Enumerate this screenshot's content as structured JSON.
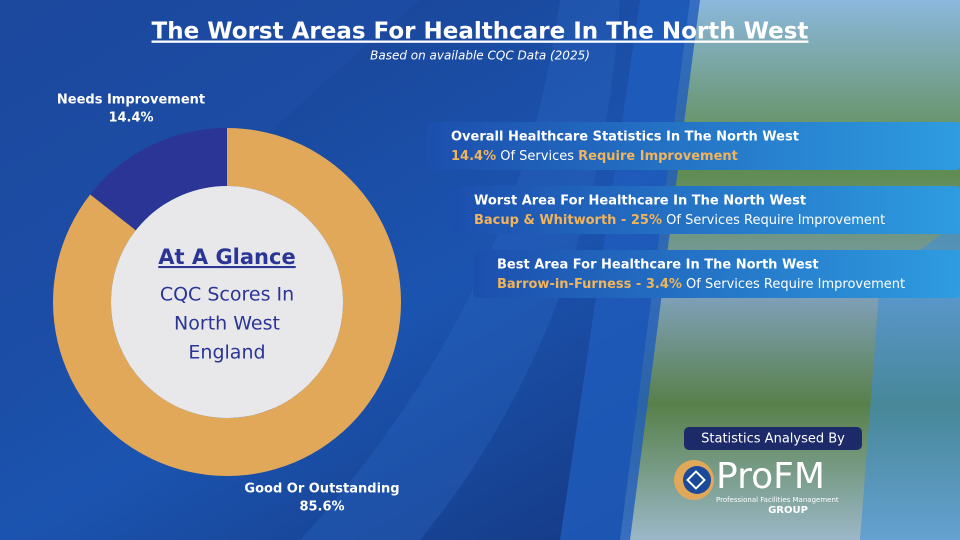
{
  "chart_data": {
    "type": "pie",
    "donut": true,
    "title": "The Worst Areas For Healthcare In The North West",
    "subtitle": "Based on available CQC Data (2025)",
    "categories": [
      "Needs Improvement",
      "Good Or Outstanding"
    ],
    "values": [
      14.4,
      85.6
    ],
    "value_labels": [
      "14.4%",
      "85.6%"
    ],
    "colors": [
      "#2a3596",
      "#e2a85a"
    ],
    "center_title": "At A Glance",
    "center_lines": [
      "CQC Scores In",
      "North West",
      "England"
    ]
  },
  "panels": [
    {
      "heading": "Overall Healthcare Statistics In The North West",
      "line": [
        {
          "text": "14.4%",
          "highlight": true
        },
        {
          "text": " Of Services ",
          "highlight": false
        },
        {
          "text": "Require Improvement",
          "highlight": true
        }
      ]
    },
    {
      "heading": "Worst Area For Healthcare In The North West",
      "line": [
        {
          "text": "Bacup & Whitworth - 25%",
          "highlight": true
        },
        {
          "text": " Of Services Require Improvement",
          "highlight": false
        }
      ]
    },
    {
      "heading": "Best Area For Healthcare In The North West",
      "line": [
        {
          "text": "Barrow-in-Furness - 3.4%",
          "highlight": true
        },
        {
          "text": " Of Services Require Improvement",
          "highlight": false
        }
      ]
    }
  ],
  "credit": {
    "label": "Statistics Analysed By",
    "brand": "ProFM",
    "tagline": "Professional Facilities Management",
    "group": "GROUP"
  }
}
